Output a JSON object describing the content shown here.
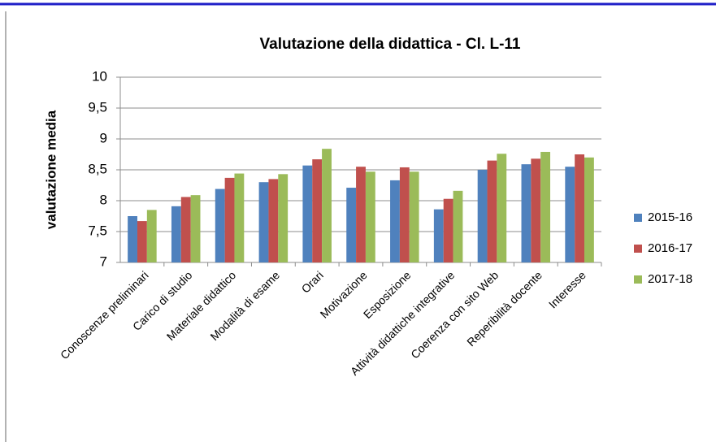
{
  "chart_data": {
    "type": "bar",
    "title": "Valutazione della didattica - Cl. L-11",
    "y_label": "valutazione media",
    "categories": [
      "Conoscenze preliminari",
      "Carico di studio",
      "Materiale didattico",
      "Modalità di esame",
      "Orari",
      "Motivazione",
      "Esposizione",
      "Attività didattiche integrative",
      "Coerenza con sito Web",
      "Reperibilità docente",
      "Interesse"
    ],
    "series": [
      {
        "name": "2015-16",
        "color": "#4f81bd",
        "values": [
          7.75,
          7.91,
          8.19,
          8.3,
          8.57,
          8.21,
          8.33,
          7.86,
          8.5,
          8.59,
          8.55
        ]
      },
      {
        "name": "2016-17",
        "color": "#c0504d",
        "values": [
          7.67,
          8.06,
          8.37,
          8.35,
          8.67,
          8.55,
          8.54,
          8.03,
          8.65,
          8.68,
          8.75
        ]
      },
      {
        "name": "2017-18",
        "color": "#9bbb59",
        "values": [
          7.85,
          8.09,
          8.44,
          8.43,
          8.84,
          8.47,
          8.47,
          8.16,
          8.76,
          8.79,
          8.7
        ]
      }
    ],
    "ylim": [
      7,
      10
    ],
    "yticks": [
      7,
      {
        "value": 7.5,
        "label": "7,5"
      },
      8,
      {
        "value": 8.5,
        "label": "8,5"
      },
      9,
      {
        "value": 9.5,
        "label": "9,5"
      },
      10
    ],
    "grid": true,
    "legend": "right"
  }
}
